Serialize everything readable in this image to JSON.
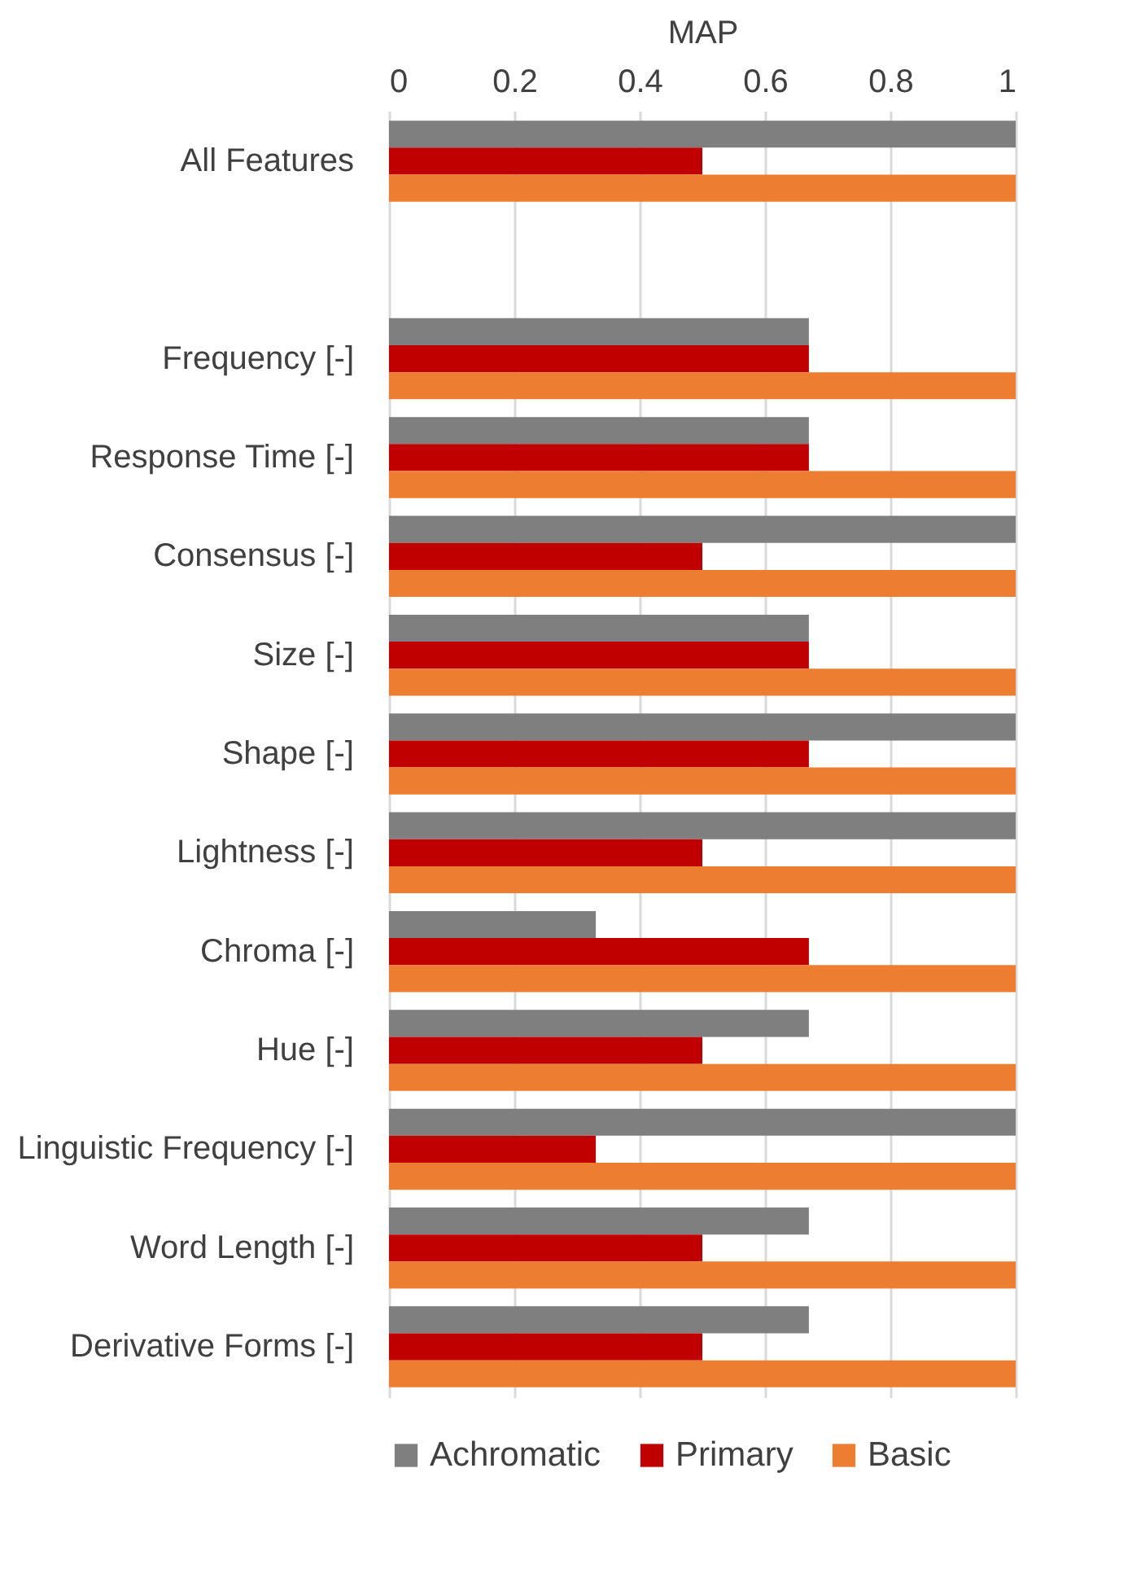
{
  "chart_data": {
    "type": "bar",
    "orientation": "horizontal",
    "xlabel": "MAP",
    "categories": [
      "All Features",
      null,
      "Frequency [-]",
      "Response Time [-]",
      "Consensus [-]",
      "Size [-]",
      "Shape [-]",
      "Lightness [-]",
      "Chroma [-]",
      "Hue [-]",
      "Linguistic Frequency [-]",
      "Word Length [-]",
      "Derivative Forms [-]"
    ],
    "series": [
      {
        "name": "Achromatic",
        "color": "#7f7f7f",
        "values": [
          1,
          null,
          0.67,
          0.67,
          1,
          0.67,
          1,
          1,
          0.33,
          0.67,
          1,
          0.67,
          0.67
        ]
      },
      {
        "name": "Primary",
        "color": "#c00000",
        "values": [
          0.5,
          null,
          0.67,
          0.67,
          0.5,
          0.67,
          0.67,
          0.5,
          0.67,
          0.5,
          0.33,
          0.5,
          0.5
        ]
      },
      {
        "name": "Basic",
        "color": "#ed7d31",
        "values": [
          1,
          null,
          1,
          1,
          1,
          1,
          1,
          1,
          1,
          1,
          1,
          1,
          1
        ]
      }
    ],
    "xlim": [
      0,
      1
    ],
    "xticks": [
      0,
      0.2,
      0.4,
      0.6,
      0.8,
      1
    ],
    "grid": "x",
    "legend": "bottom"
  }
}
